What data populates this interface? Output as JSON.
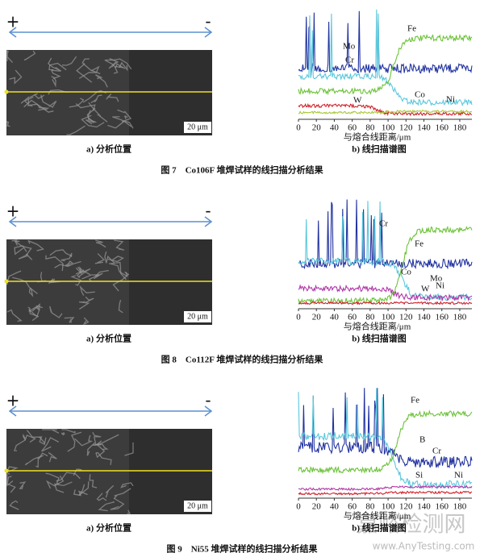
{
  "figures": [
    {
      "plus": "+",
      "minus": "-",
      "scale_bar": "20 μm",
      "x_ticks": [
        0,
        20,
        40,
        60,
        80,
        100,
        120,
        140,
        160,
        180
      ],
      "x_label": "与熔合线距离/μm",
      "elements": [
        "Mo",
        "Cr",
        "W",
        "Co",
        "Ni",
        "Fe"
      ],
      "caption_a": "a) 分析位置",
      "caption_b": "b) 线扫描谱图",
      "caption": "图 7　Co106F 堆焊试样的线扫描分析结果"
    },
    {
      "plus": "+",
      "minus": "-",
      "scale_bar": "20 μm",
      "x_ticks": [
        0,
        20,
        40,
        60,
        80,
        100,
        120,
        140,
        160,
        180
      ],
      "x_label": "与熔合线距离/μm",
      "elements": [
        "Cr",
        "Fe",
        "Co",
        "Mo",
        "W",
        "Ni"
      ],
      "caption_a": "a) 分析位置",
      "caption_b": "b) 线扫描谱图",
      "caption": "图 8　Co112F 堆焊试样的线扫描分析结果"
    },
    {
      "plus": "+",
      "minus": "-",
      "scale_bar": "20 μm",
      "x_ticks": [
        0,
        20,
        40,
        60,
        80,
        100,
        120,
        140,
        160,
        180
      ],
      "x_label": "与熔合线距离/μm",
      "elements": [
        "Fe",
        "B",
        "Cr",
        "Si",
        "Ni"
      ],
      "caption_a": "a) 分析位置",
      "caption_b": "b) 线扫描谱图",
      "caption": "图 9　Ni55 堆焊试样的线扫描分析结果"
    }
  ],
  "watermark": {
    "main": "嘉峪检测网",
    "url": "www.AnyTesting.com"
  }
}
